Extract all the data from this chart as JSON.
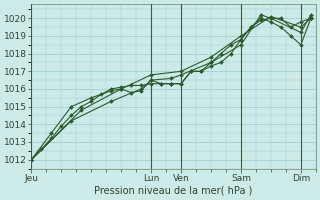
{
  "background_color": "#cceae7",
  "grid_color": "#99cccc",
  "line_color": "#2d5a2d",
  "marker_color": "#2d5a2d",
  "title": "Pression niveau de la mer( hPa )",
  "ylim": [
    1011.5,
    1020.8
  ],
  "yticks": [
    1012,
    1013,
    1014,
    1015,
    1016,
    1017,
    1018,
    1019,
    1020
  ],
  "xtick_labels": [
    "Jeu",
    "Lun",
    "Ven",
    "Sam",
    "Dim"
  ],
  "xtick_positions": [
    0,
    48,
    60,
    84,
    108
  ],
  "xlim": [
    0,
    114
  ],
  "vlines": [
    0,
    48,
    60,
    84,
    108
  ],
  "series1": [
    [
      0,
      1012.0
    ],
    [
      4,
      1012.6
    ],
    [
      8,
      1013.2
    ],
    [
      12,
      1013.9
    ],
    [
      16,
      1014.5
    ],
    [
      20,
      1015.0
    ],
    [
      24,
      1015.3
    ],
    [
      28,
      1015.7
    ],
    [
      32,
      1016.0
    ],
    [
      36,
      1016.1
    ],
    [
      40,
      1016.2
    ],
    [
      44,
      1016.2
    ],
    [
      48,
      1016.3
    ],
    [
      52,
      1016.3
    ],
    [
      56,
      1016.3
    ],
    [
      60,
      1016.3
    ],
    [
      64,
      1017.0
    ],
    [
      68,
      1017.0
    ],
    [
      72,
      1017.3
    ],
    [
      76,
      1017.5
    ],
    [
      80,
      1018.0
    ],
    [
      84,
      1018.8
    ],
    [
      88,
      1019.5
    ],
    [
      92,
      1019.9
    ],
    [
      96,
      1020.0
    ],
    [
      100,
      1020.0
    ],
    [
      104,
      1019.5
    ],
    [
      108,
      1019.8
    ],
    [
      112,
      1020.0
    ]
  ],
  "series2": [
    [
      0,
      1012.0
    ],
    [
      8,
      1013.5
    ],
    [
      16,
      1015.0
    ],
    [
      24,
      1015.5
    ],
    [
      32,
      1015.9
    ],
    [
      36,
      1016.0
    ],
    [
      40,
      1015.8
    ],
    [
      44,
      1015.9
    ],
    [
      48,
      1016.5
    ],
    [
      52,
      1016.3
    ],
    [
      56,
      1016.3
    ],
    [
      60,
      1016.3
    ],
    [
      64,
      1017.0
    ],
    [
      68,
      1017.0
    ],
    [
      72,
      1017.5
    ],
    [
      76,
      1018.0
    ],
    [
      80,
      1018.5
    ],
    [
      84,
      1018.8
    ],
    [
      88,
      1019.5
    ],
    [
      92,
      1020.0
    ],
    [
      96,
      1019.8
    ],
    [
      100,
      1019.5
    ],
    [
      104,
      1019.0
    ],
    [
      108,
      1018.5
    ],
    [
      112,
      1020.0
    ]
  ],
  "series3": [
    [
      0,
      1012.0
    ],
    [
      16,
      1014.2
    ],
    [
      32,
      1015.3
    ],
    [
      44,
      1016.0
    ],
    [
      48,
      1016.5
    ],
    [
      56,
      1016.6
    ],
    [
      60,
      1016.8
    ],
    [
      72,
      1017.5
    ],
    [
      84,
      1018.5
    ],
    [
      92,
      1020.2
    ],
    [
      96,
      1020.0
    ],
    [
      108,
      1019.2
    ],
    [
      112,
      1020.2
    ]
  ],
  "series4": [
    [
      0,
      1012.0
    ],
    [
      20,
      1014.8
    ],
    [
      36,
      1016.0
    ],
    [
      48,
      1016.8
    ],
    [
      60,
      1017.0
    ],
    [
      72,
      1017.8
    ],
    [
      84,
      1019.0
    ],
    [
      96,
      1020.1
    ],
    [
      108,
      1019.5
    ],
    [
      112,
      1020.0
    ]
  ]
}
